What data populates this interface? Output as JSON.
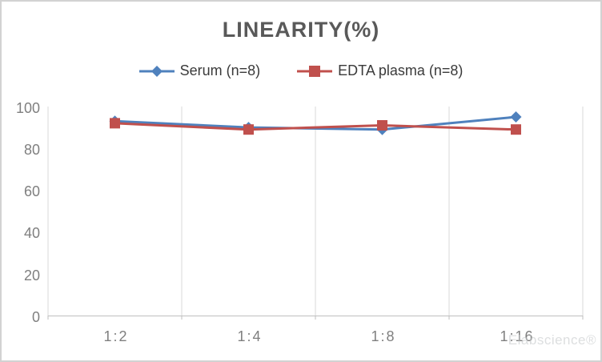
{
  "title": "LINEARITY(%)",
  "watermark": "Elabscience®",
  "colors": {
    "serum": "#4F81BD",
    "edta_plasma": "#C0504D",
    "title_text": "#595959",
    "axis_text": "#7F7F7F",
    "gridline": "#D9D9D9",
    "axis_line": "#BFBFBF"
  },
  "chart_data": {
    "type": "line",
    "title": "LINEARITY(%)",
    "categories": [
      "1:2",
      "1:4",
      "1:8",
      "1:16"
    ],
    "series": [
      {
        "name": "Serum (n=8)",
        "marker": "diamond",
        "color": "#4F81BD",
        "values": [
          93,
          90,
          89,
          95
        ]
      },
      {
        "name": "EDTA plasma (n=8)",
        "marker": "square",
        "color": "#C0504D",
        "values": [
          92,
          89,
          91,
          89
        ]
      }
    ],
    "xlabel": "",
    "ylabel": "",
    "ylim": [
      0,
      100
    ],
    "yticks": [
      0,
      20,
      40,
      60,
      80,
      100
    ],
    "grid": "vertical-between-categories",
    "legend_position": "top-center"
  }
}
